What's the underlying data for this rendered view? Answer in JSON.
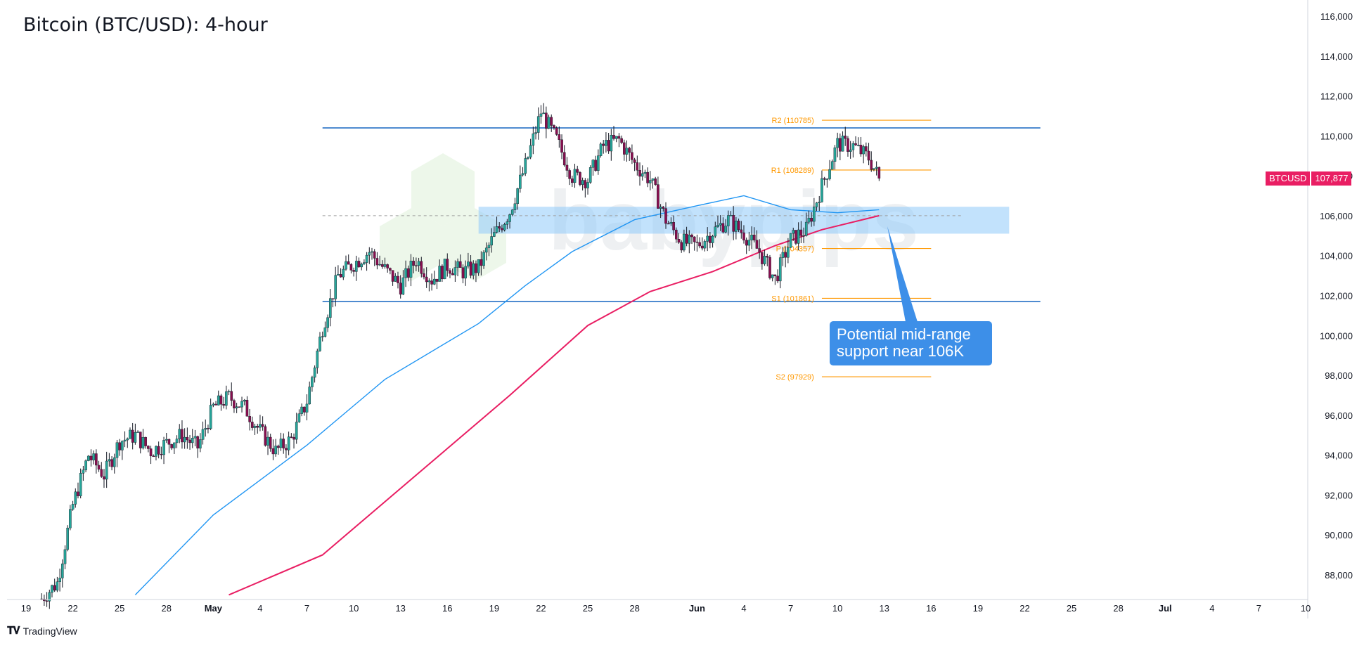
{
  "title": "Bitcoin (BTC/USD): 4-hour",
  "brand": "TradingView",
  "symbol": "BTCUSD",
  "last_price_label": "107,877",
  "callout": {
    "line1": "Potential mid-range",
    "line2": "support near 106K"
  },
  "watermark": "babypips",
  "colors": {
    "up_candle": "#26a69a",
    "down_candle": "#880e4f",
    "range_line": "#1565c0",
    "ma100": "#2196f3",
    "ma200": "#e91e63",
    "pivot": "#ff9800",
    "support_zone": "#90caf9",
    "callout": "#3d8fe8"
  },
  "chart_data": {
    "type": "candlestick",
    "title": "Bitcoin (BTC/USD): 4-hour",
    "x_start": "2025-04-19",
    "x_end": "2025-07-10",
    "ylim": [
      87000,
      116500
    ],
    "y_ticks": [
      88000,
      90000,
      92000,
      94000,
      96000,
      98000,
      100000,
      102000,
      104000,
      106000,
      108000,
      110000,
      112000,
      114000,
      116000
    ],
    "y_tick_labels": [
      "88,000",
      "90,000",
      "92,000",
      "94,000",
      "96,000",
      "98,000",
      "100,000",
      "102,000",
      "104,000",
      "106,000",
      "108,000",
      "110,000",
      "112,000",
      "114,000",
      "116,000"
    ],
    "x_ticks": [
      {
        "date": "2025-04-19",
        "label": "19"
      },
      {
        "date": "2025-04-22",
        "label": "22"
      },
      {
        "date": "2025-04-25",
        "label": "25"
      },
      {
        "date": "2025-04-28",
        "label": "28"
      },
      {
        "date": "2025-05-01",
        "label": "May"
      },
      {
        "date": "2025-05-04",
        "label": "4"
      },
      {
        "date": "2025-05-07",
        "label": "7"
      },
      {
        "date": "2025-05-10",
        "label": "10"
      },
      {
        "date": "2025-05-13",
        "label": "13"
      },
      {
        "date": "2025-05-16",
        "label": "16"
      },
      {
        "date": "2025-05-19",
        "label": "19"
      },
      {
        "date": "2025-05-22",
        "label": "22"
      },
      {
        "date": "2025-05-25",
        "label": "25"
      },
      {
        "date": "2025-05-28",
        "label": "28"
      },
      {
        "date": "2025-06-01",
        "label": "Jun"
      },
      {
        "date": "2025-06-04",
        "label": "4"
      },
      {
        "date": "2025-06-07",
        "label": "7"
      },
      {
        "date": "2025-06-10",
        "label": "10"
      },
      {
        "date": "2025-06-13",
        "label": "13"
      },
      {
        "date": "2025-06-16",
        "label": "16"
      },
      {
        "date": "2025-06-19",
        "label": "19"
      },
      {
        "date": "2025-06-22",
        "label": "22"
      },
      {
        "date": "2025-06-25",
        "label": "25"
      },
      {
        "date": "2025-06-28",
        "label": "28"
      },
      {
        "date": "2025-07-01",
        "label": "Jul"
      },
      {
        "date": "2025-07-04",
        "label": "4"
      },
      {
        "date": "2025-07-07",
        "label": "7"
      },
      {
        "date": "2025-07-10",
        "label": "10"
      }
    ],
    "close_anchors": [
      {
        "date": "2025-04-20",
        "value": 86800
      },
      {
        "date": "2025-04-21",
        "value": 87600
      },
      {
        "date": "2025-04-22",
        "value": 91500
      },
      {
        "date": "2025-04-23",
        "value": 94000
      },
      {
        "date": "2025-04-24",
        "value": 93000
      },
      {
        "date": "2025-04-25",
        "value": 94700
      },
      {
        "date": "2025-04-26",
        "value": 95000
      },
      {
        "date": "2025-04-27",
        "value": 94200
      },
      {
        "date": "2025-04-28",
        "value": 94600
      },
      {
        "date": "2025-04-29",
        "value": 95000
      },
      {
        "date": "2025-04-30",
        "value": 94400
      },
      {
        "date": "2025-05-01",
        "value": 96400
      },
      {
        "date": "2025-05-02",
        "value": 96900
      },
      {
        "date": "2025-05-03",
        "value": 96400
      },
      {
        "date": "2025-05-04",
        "value": 95200
      },
      {
        "date": "2025-05-05",
        "value": 94200
      },
      {
        "date": "2025-05-06",
        "value": 94800
      },
      {
        "date": "2025-05-07",
        "value": 96700
      },
      {
        "date": "2025-05-08",
        "value": 100400
      },
      {
        "date": "2025-05-09",
        "value": 103000
      },
      {
        "date": "2025-05-10",
        "value": 103600
      },
      {
        "date": "2025-05-11",
        "value": 104200
      },
      {
        "date": "2025-05-12",
        "value": 103300
      },
      {
        "date": "2025-05-13",
        "value": 102500
      },
      {
        "date": "2025-05-14",
        "value": 103800
      },
      {
        "date": "2025-05-15",
        "value": 102800
      },
      {
        "date": "2025-05-16",
        "value": 103500
      },
      {
        "date": "2025-05-17",
        "value": 103200
      },
      {
        "date": "2025-05-18",
        "value": 103400
      },
      {
        "date": "2025-05-19",
        "value": 105000
      },
      {
        "date": "2025-05-20",
        "value": 106200
      },
      {
        "date": "2025-05-21",
        "value": 108500
      },
      {
        "date": "2025-05-22",
        "value": 111200
      },
      {
        "date": "2025-05-23",
        "value": 109800
      },
      {
        "date": "2025-05-24",
        "value": 108000
      },
      {
        "date": "2025-05-25",
        "value": 107800
      },
      {
        "date": "2025-05-26",
        "value": 109500
      },
      {
        "date": "2025-05-27",
        "value": 109800
      },
      {
        "date": "2025-05-28",
        "value": 108600
      },
      {
        "date": "2025-05-29",
        "value": 107800
      },
      {
        "date": "2025-05-30",
        "value": 105800
      },
      {
        "date": "2025-05-31",
        "value": 104700
      },
      {
        "date": "2025-06-01",
        "value": 104500
      },
      {
        "date": "2025-06-02",
        "value": 105200
      },
      {
        "date": "2025-06-03",
        "value": 105800
      },
      {
        "date": "2025-06-04",
        "value": 105100
      },
      {
        "date": "2025-06-05",
        "value": 104200
      },
      {
        "date": "2025-06-06",
        "value": 102800
      },
      {
        "date": "2025-06-07",
        "value": 104800
      },
      {
        "date": "2025-06-08",
        "value": 105300
      },
      {
        "date": "2025-06-09",
        "value": 107500
      },
      {
        "date": "2025-06-10",
        "value": 109600
      },
      {
        "date": "2025-06-11",
        "value": 109500
      },
      {
        "date": "2025-06-12",
        "value": 108900
      },
      {
        "date": "2025-06-12T16:00",
        "value": 107877
      }
    ],
    "moving_averages": [
      {
        "color": "#2196f3",
        "points": [
          {
            "date": "2025-04-26",
            "value": 87000
          },
          {
            "date": "2025-05-01",
            "value": 91000
          },
          {
            "date": "2025-05-07",
            "value": 94500
          },
          {
            "date": "2025-05-12",
            "value": 97800
          },
          {
            "date": "2025-05-18",
            "value": 100600
          },
          {
            "date": "2025-05-21",
            "value": 102500
          },
          {
            "date": "2025-05-24",
            "value": 104200
          },
          {
            "date": "2025-05-28",
            "value": 105800
          },
          {
            "date": "2025-06-01",
            "value": 106500
          },
          {
            "date": "2025-06-04",
            "value": 107000
          },
          {
            "date": "2025-06-07",
            "value": 106300
          },
          {
            "date": "2025-06-10",
            "value": 106150
          },
          {
            "date": "2025-06-12T16:00",
            "value": 106300
          }
        ]
      },
      {
        "color": "#e91e63",
        "points": [
          {
            "date": "2025-05-02",
            "value": 87000
          },
          {
            "date": "2025-05-08",
            "value": 89000
          },
          {
            "date": "2025-05-14",
            "value": 93000
          },
          {
            "date": "2025-05-20",
            "value": 97000
          },
          {
            "date": "2025-05-25",
            "value": 100500
          },
          {
            "date": "2025-05-29",
            "value": 102200
          },
          {
            "date": "2025-06-02",
            "value": 103200
          },
          {
            "date": "2025-06-06",
            "value": 104500
          },
          {
            "date": "2025-06-09",
            "value": 105300
          },
          {
            "date": "2025-06-12T16:00",
            "value": 106000
          }
        ]
      }
    ],
    "range_lines": [
      {
        "value": 110400,
        "from": "2025-05-08",
        "to": "2025-06-23"
      },
      {
        "value": 101700,
        "from": "2025-05-08",
        "to": "2025-06-23"
      }
    ],
    "dashed_line": {
      "value": 106000,
      "from": "2025-05-08",
      "to": "2025-06-18"
    },
    "support_zone": {
      "from": "2025-05-18",
      "to": "2025-06-21",
      "low": 105100,
      "high": 106450
    },
    "pivot_levels": [
      {
        "label": "R2 (110785)",
        "value": 110785
      },
      {
        "label": "R1 (108289)",
        "value": 108289
      },
      {
        "label": "P (104357)",
        "value": 104357
      },
      {
        "label": "S1 (101861)",
        "value": 101861
      },
      {
        "label": "S2 (97929)",
        "value": 97929
      }
    ],
    "pivot_range": {
      "label_at": "2025-06-08T12:00",
      "from": "2025-06-09",
      "to": "2025-06-16"
    },
    "last_price": 107877
  }
}
